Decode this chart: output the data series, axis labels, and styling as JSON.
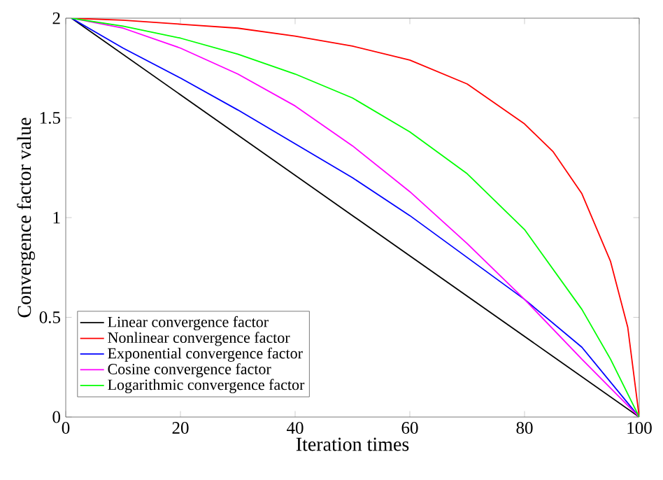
{
  "chart_data": {
    "type": "line",
    "xlabel": "Iteration times",
    "ylabel": "Convergence factor value",
    "xlim": [
      0,
      100
    ],
    "ylim": [
      0,
      2
    ],
    "xticks": [
      0,
      20,
      40,
      60,
      80,
      100
    ],
    "yticks": [
      0,
      0.5,
      1,
      1.5,
      2
    ],
    "legend": "bottom left",
    "series": [
      {
        "name": "Linear convergence factor",
        "color": "#000000",
        "x": [
          1,
          100
        ],
        "values": [
          2,
          0
        ]
      },
      {
        "name": "Nonlinear convergence factor",
        "color": "#ff0000",
        "x": [
          1,
          10,
          20,
          30,
          40,
          50,
          60,
          70,
          80,
          85,
          90,
          95,
          98,
          100
        ],
        "values": [
          2,
          1.99,
          1.97,
          1.95,
          1.91,
          1.86,
          1.79,
          1.67,
          1.47,
          1.33,
          1.12,
          0.78,
          0.45,
          0
        ]
      },
      {
        "name": "Exponential convergence factor",
        "color": "#0000ff",
        "x": [
          1,
          10,
          20,
          30,
          40,
          50,
          60,
          70,
          80,
          90,
          100
        ],
        "values": [
          2,
          1.85,
          1.7,
          1.54,
          1.37,
          1.2,
          1.01,
          0.8,
          0.59,
          0.35,
          0
        ]
      },
      {
        "name": "Cosine convergence factor",
        "color": "#ff00ff",
        "x": [
          1,
          10,
          20,
          30,
          40,
          50,
          60,
          70,
          80,
          90,
          100
        ],
        "values": [
          2,
          1.95,
          1.85,
          1.72,
          1.56,
          1.36,
          1.13,
          0.87,
          0.59,
          0.29,
          0
        ]
      },
      {
        "name": "Logarithmic convergence factor",
        "color": "#00ff00",
        "x": [
          1,
          10,
          20,
          30,
          40,
          50,
          60,
          70,
          80,
          90,
          95,
          100
        ],
        "values": [
          2,
          1.96,
          1.9,
          1.82,
          1.72,
          1.6,
          1.43,
          1.22,
          0.94,
          0.54,
          0.29,
          0
        ]
      }
    ]
  }
}
